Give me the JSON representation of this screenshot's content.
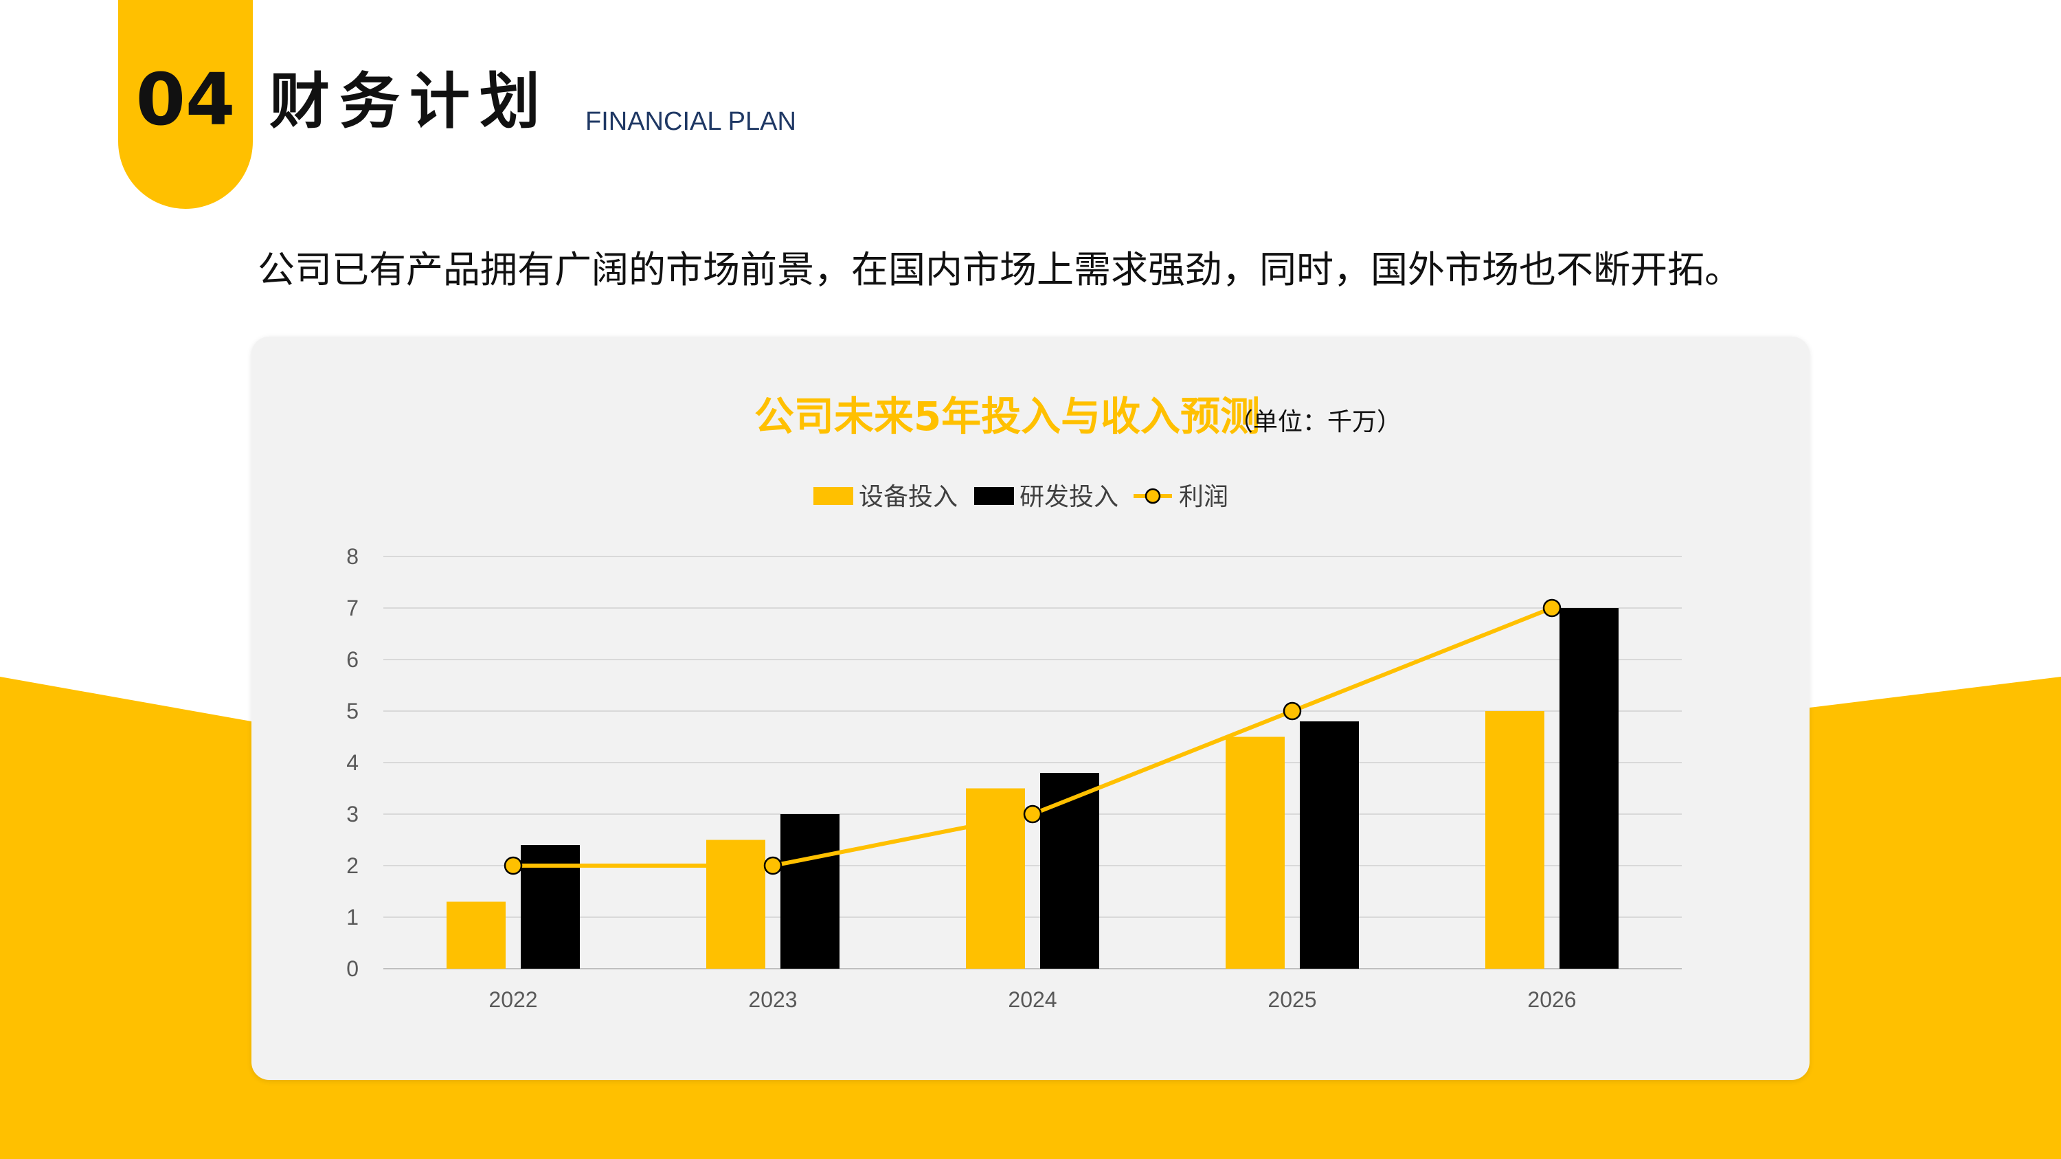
{
  "header": {
    "number": "04",
    "title": "财务计划",
    "title_en": "FINANCIAL PLAN"
  },
  "subtitle": "公司已有产品拥有广阔的市场前景，在国内市场上需求强劲，同时，国外市场也不断开拓。",
  "colors": {
    "accent": "#FFC000",
    "dark": "#000000",
    "panel": "#F2F2F2",
    "grid": "#D9D9D9",
    "axis_text": "#595959"
  },
  "chart_data": {
    "type": "bar",
    "title": "公司未来5年投入与收入预测",
    "unit_note": "（单位：千万）",
    "categories": [
      "2022",
      "2023",
      "2024",
      "2025",
      "2026"
    ],
    "series": [
      {
        "name": "设备投入",
        "type": "bar",
        "color": "#FFC000",
        "values": [
          1.3,
          2.5,
          3.5,
          4.5,
          5.0
        ]
      },
      {
        "name": "研发投入",
        "type": "bar",
        "color": "#000000",
        "values": [
          2.4,
          3.0,
          3.8,
          4.8,
          7.0
        ]
      },
      {
        "name": "利润",
        "type": "line",
        "color": "#FFC000",
        "values": [
          2,
          2,
          3,
          5,
          7
        ]
      }
    ],
    "ylim": [
      0,
      8
    ],
    "yticks": [
      0,
      1,
      2,
      3,
      4,
      5,
      6,
      7,
      8
    ],
    "grid": true,
    "legend": "top-center"
  }
}
